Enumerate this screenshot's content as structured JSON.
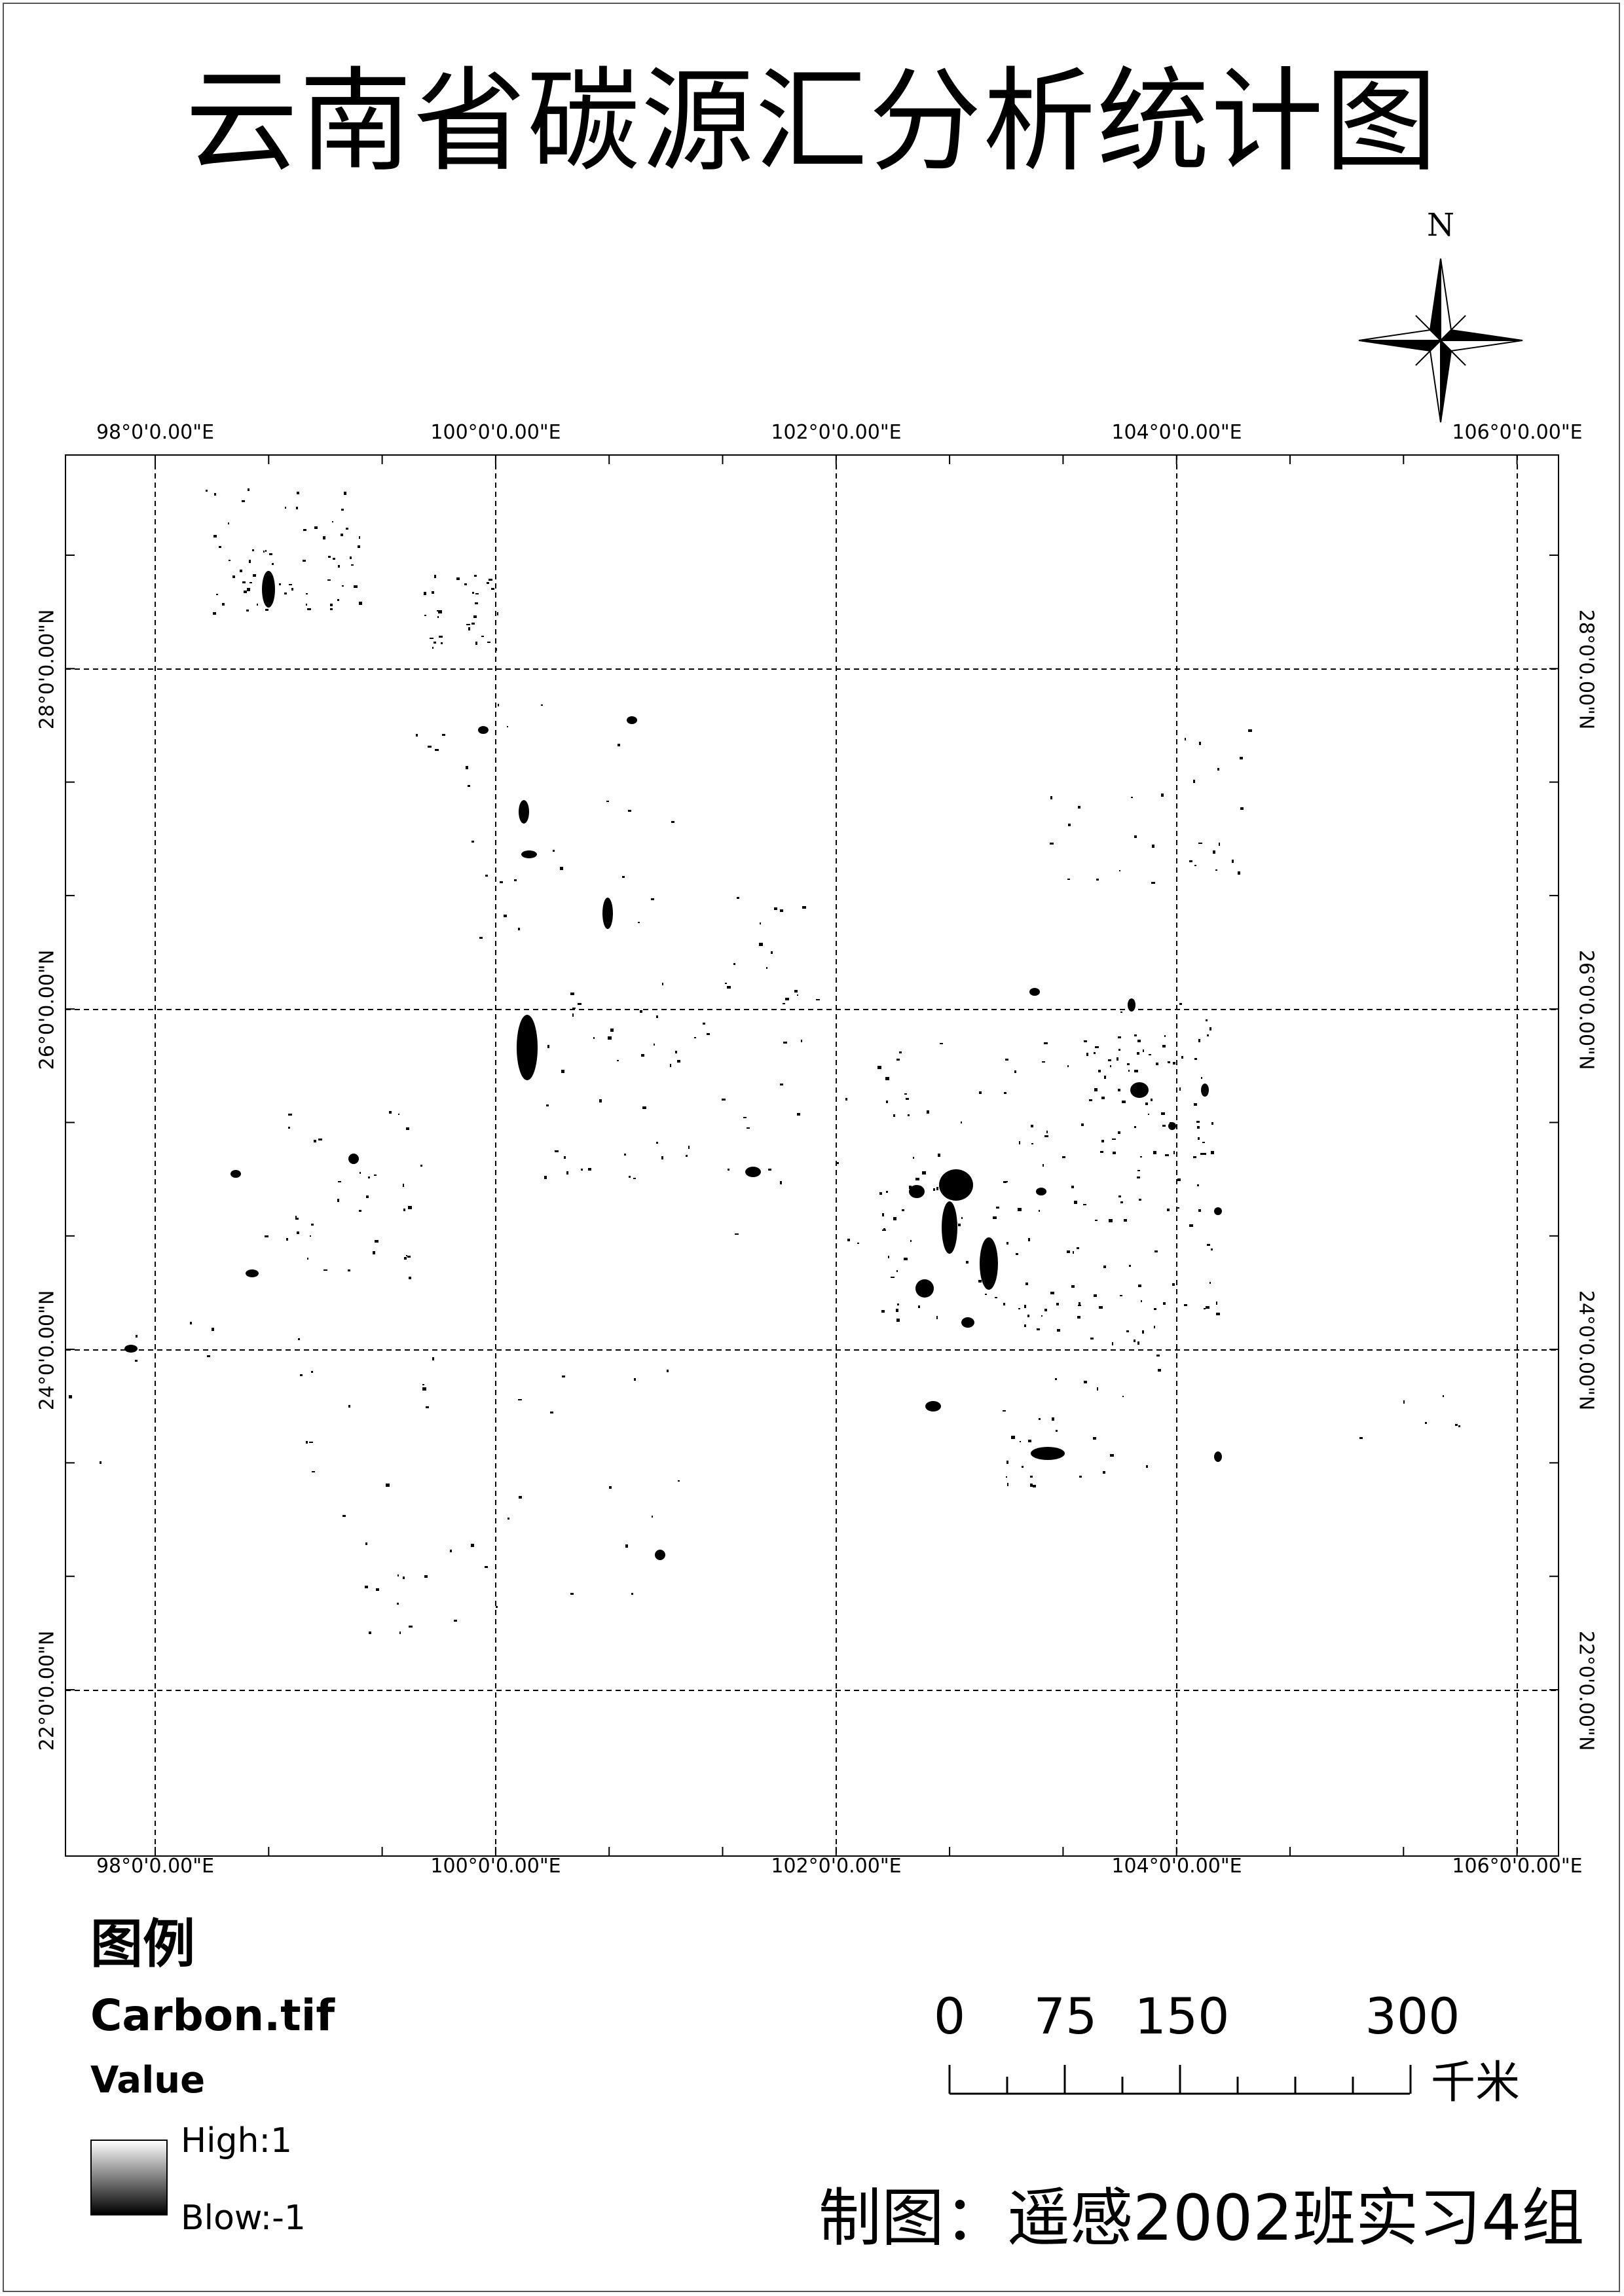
{
  "title": "云南省碳源汇分析统计图",
  "north_arrow": {
    "label": "N"
  },
  "graticule": {
    "longitudes": [
      "98°0'0.00\"E",
      "100°0'0.00\"E",
      "102°0'0.00\"E",
      "104°0'0.00\"E",
      "106°0'0.00\"E"
    ],
    "latitudes": [
      "28°0'0.00\"N",
      "26°0'0.00\"N",
      "24°0'0.00\"N",
      "22°0'0.00\"N"
    ]
  },
  "legend": {
    "title": "图例",
    "layer": "Carbon.tif",
    "field": "Value",
    "high": "High:1",
    "low": "Blow:-1"
  },
  "scale_bar": {
    "labels": [
      "0",
      "75",
      "150",
      "300"
    ],
    "unit": "千米"
  },
  "credit": "制图：遥感2002班实习4组",
  "colors": {
    "source": "#000000",
    "sink": "#ffffff",
    "frame": "#555555"
  }
}
